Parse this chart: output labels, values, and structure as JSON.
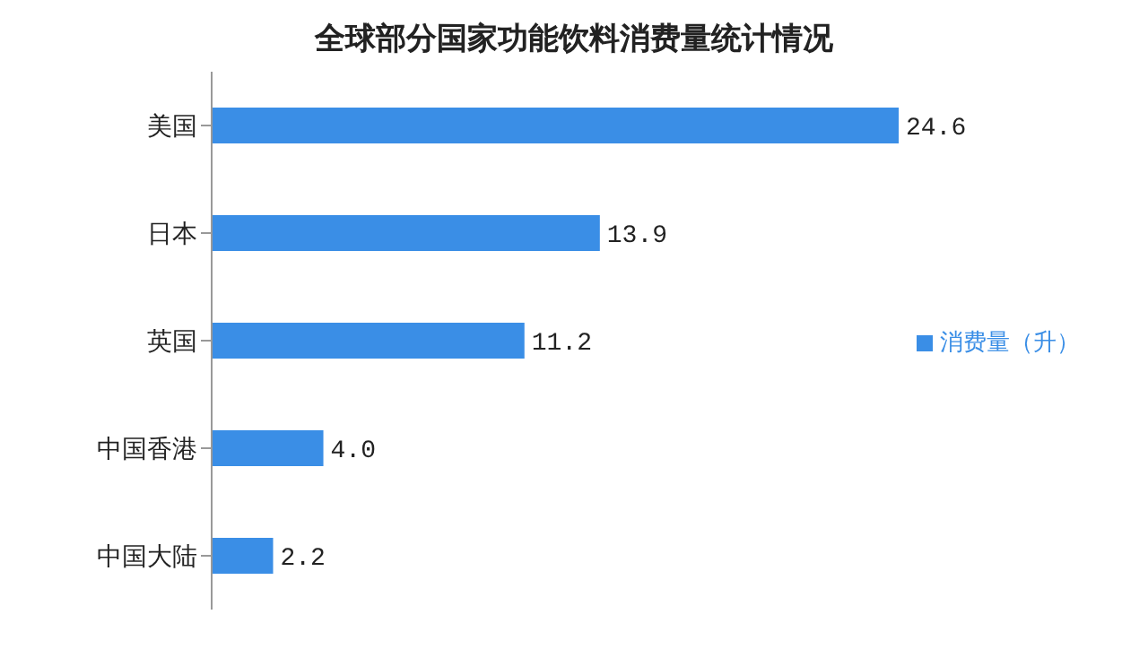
{
  "chart_data": {
    "type": "bar",
    "orientation": "horizontal",
    "title": "全球部分国家功能饮料消费量统计情况",
    "categories": [
      "美国",
      "日本",
      "英国",
      "中国香港",
      "中国大陆"
    ],
    "series": [
      {
        "name": "消费量（升）",
        "color": "#3a8ee6",
        "values": [
          24.6,
          13.9,
          11.2,
          4.0,
          2.2
        ],
        "value_labels": [
          "24.6",
          "13.9",
          "11.2",
          "4.0",
          "2.2"
        ]
      }
    ],
    "tick_labels": "y",
    "legend": "right",
    "grid": false
  }
}
